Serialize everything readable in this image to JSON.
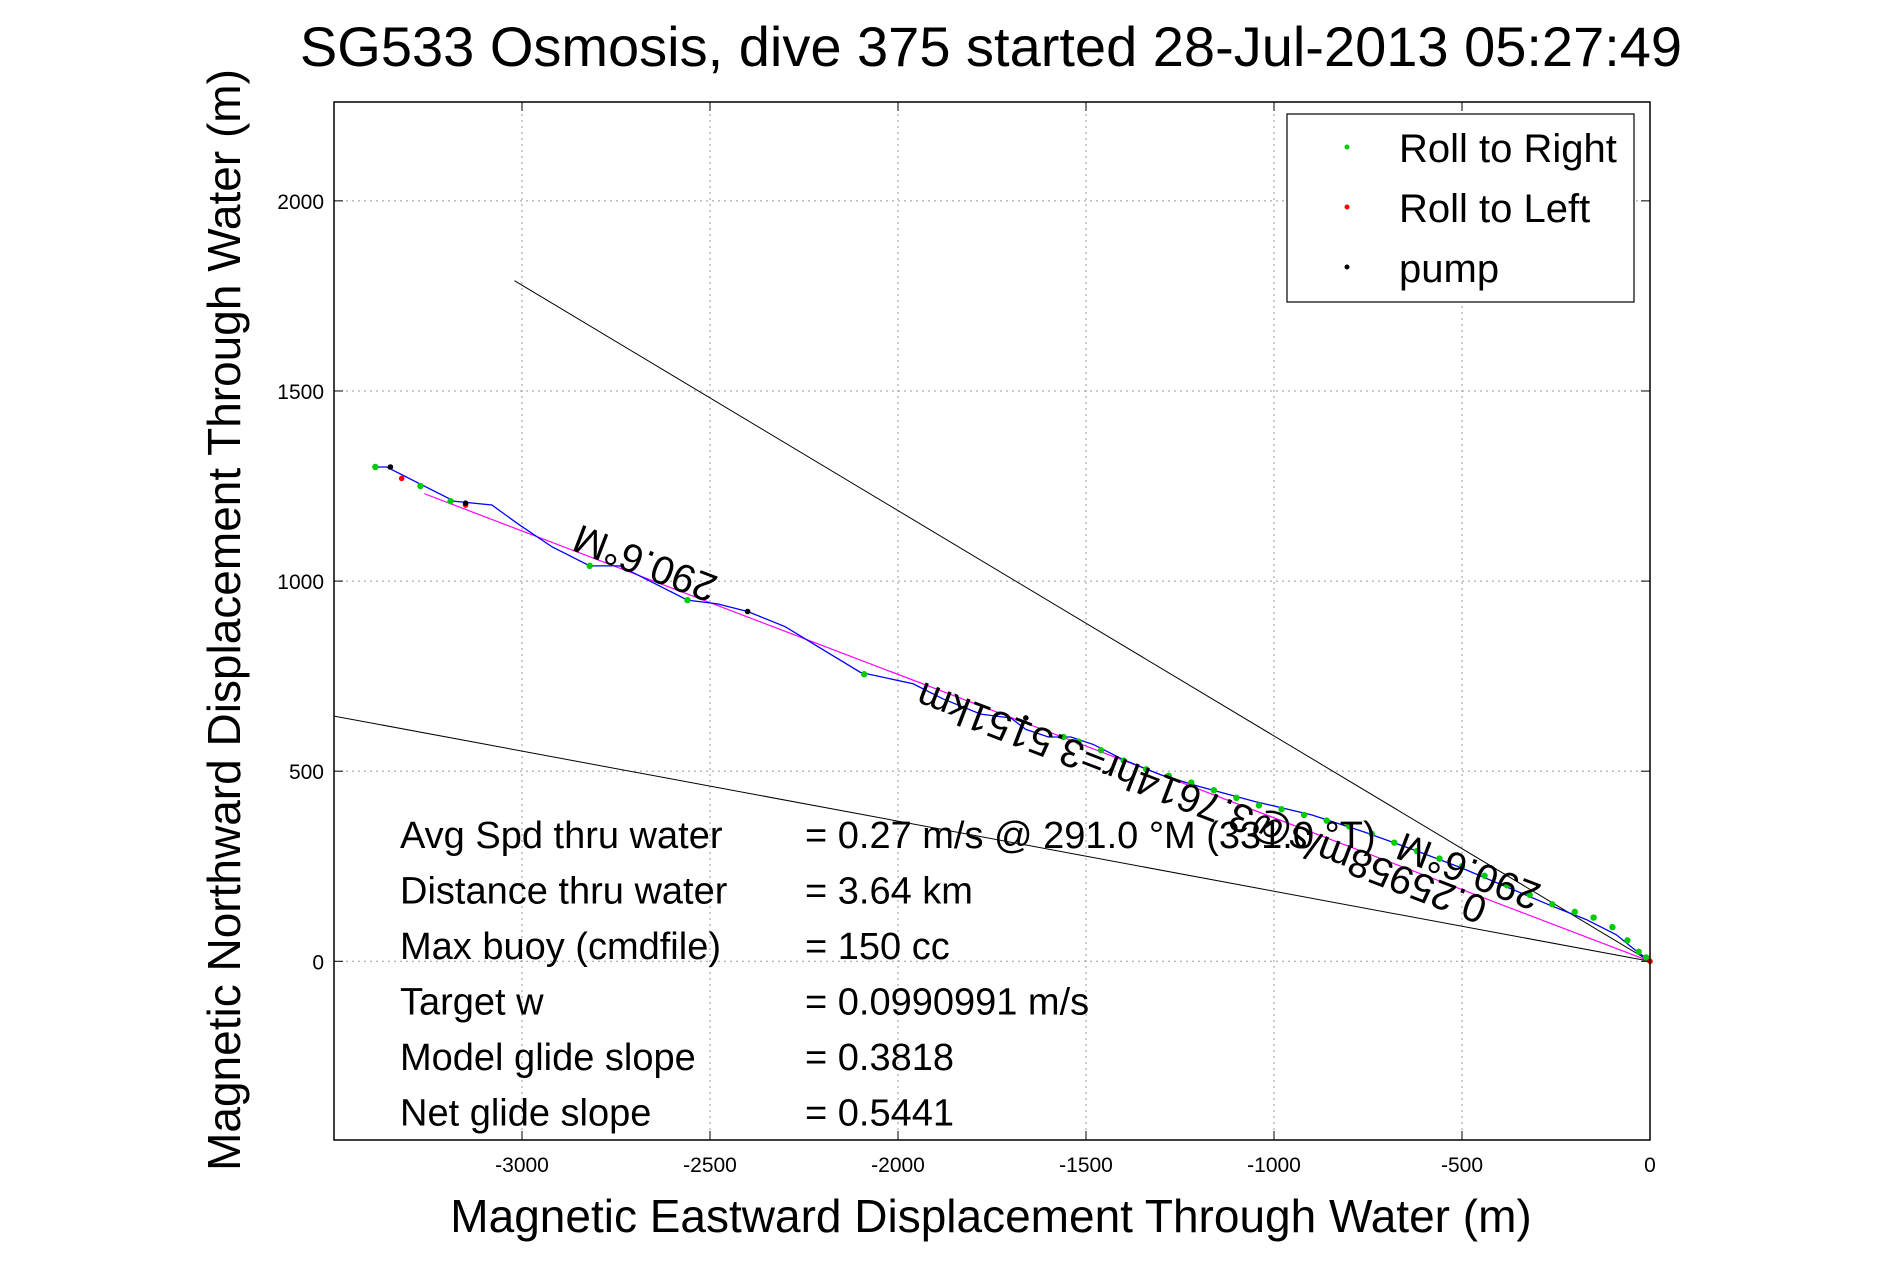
{
  "chart_data": {
    "type": "scatter",
    "title": "SG533 Osmosis, dive 375 started 28-Jul-2013 05:27:49",
    "xlabel": "Magnetic Eastward Displacement Through Water (m)",
    "ylabel": "Magnetic Northward Displacement Through Water (m)",
    "xlim": [
      -3500,
      0
    ],
    "ylim": [
      -470,
      2260
    ],
    "x_ticks": [
      -3000,
      -2500,
      -2000,
      -1500,
      -1000,
      -500,
      0
    ],
    "y_ticks": [
      0,
      500,
      1000,
      1500,
      2000
    ],
    "grid": true,
    "legend_position": "top-right",
    "legend": [
      {
        "label": "Roll to Right",
        "color": "#00cc00"
      },
      {
        "label": "Roll to Left",
        "color": "#ff0000"
      },
      {
        "label": "pump",
        "color": "#000000"
      }
    ],
    "colors": {
      "track": "#0000ff",
      "heading_line": "#ff00ff",
      "roll_right": "#00cc00",
      "roll_left": "#ff0000",
      "pump": "#000000",
      "reference_lines": "#000000",
      "grid": "#999999"
    },
    "track": {
      "x": [
        0,
        -40,
        -90,
        -170,
        -260,
        -380,
        -500,
        -620,
        -760,
        -900,
        -1050,
        -1200,
        -1300,
        -1400,
        -1480,
        -1540,
        -1600,
        -1660,
        -1700,
        -1780,
        -1880,
        -1960,
        -2100,
        -2200,
        -2300,
        -2400,
        -2480,
        -2560,
        -2660,
        -2740,
        -2820,
        -2920,
        -3010,
        -3080,
        -3180,
        -3260,
        -3300,
        -3320,
        -3340,
        -3360,
        -3390
      ],
      "y": [
        0,
        30,
        70,
        110,
        145,
        195,
        245,
        290,
        340,
        385,
        420,
        460,
        490,
        530,
        570,
        590,
        590,
        610,
        640,
        650,
        690,
        730,
        760,
        820,
        880,
        920,
        940,
        950,
        1000,
        1040,
        1040,
        1090,
        1150,
        1200,
        1210,
        1250,
        1270,
        1280,
        1290,
        1300,
        1300
      ]
    },
    "roll_right_points": {
      "x": [
        -10,
        -30,
        -60,
        -100,
        -150,
        -200,
        -260,
        -320,
        -380,
        -440,
        -500,
        -560,
        -620,
        -680,
        -740,
        -800,
        -860,
        -920,
        -980,
        -1040,
        -1100,
        -1160,
        -1220,
        -1280,
        -1340,
        -1400,
        -1460,
        -1520,
        -1560,
        -2090,
        -2560,
        -2820,
        -3190,
        -3270,
        -3390
      ],
      "y": [
        10,
        25,
        55,
        90,
        115,
        130,
        150,
        175,
        200,
        225,
        250,
        270,
        290,
        312,
        335,
        355,
        370,
        385,
        400,
        410,
        430,
        450,
        470,
        488,
        505,
        528,
        555,
        578,
        590,
        755,
        950,
        1040,
        1210,
        1250,
        1300
      ]
    },
    "roll_left_points": {
      "x": [
        0,
        -3150,
        -3320
      ],
      "y": [
        0,
        1200,
        1270
      ]
    },
    "pump_points": {
      "x": [
        -1660,
        -2400,
        -3150,
        -3350
      ],
      "y": [
        640,
        920,
        1205,
        1300
      ]
    },
    "heading_line": {
      "x": [
        0,
        -3260
      ],
      "y": [
        0,
        1230
      ]
    },
    "reference_lines": [
      {
        "x": [
          0,
          -3020
        ],
        "y": [
          0,
          1790
        ]
      },
      {
        "x": [
          0,
          -3500
        ],
        "y": [
          0,
          645
        ]
      }
    ],
    "rotated_labels": [
      {
        "text": "290.6°M",
        "x": -2660,
        "y": 1080,
        "angle": 21
      },
      {
        "text": "0.25958m/s@3.7614hr=3.5151km",
        "x": -1180,
        "y": 450,
        "angle": 21
      },
      {
        "text": "290.6°M",
        "x": -470,
        "y": 270,
        "angle": 21
      }
    ],
    "annotations": [
      {
        "label": "Avg Spd thru water",
        "value": "=  0.27 m/s @ 291.0 °M (331.0 °T)"
      },
      {
        "label": "Distance thru water",
        "value": "=  3.64 km"
      },
      {
        "label": "Max buoy (cmdfile)",
        "value": "= 150 cc"
      },
      {
        "label": "Target w",
        "value": "= 0.0990991 m/s"
      },
      {
        "label": "Model glide slope",
        "value": "= 0.3818"
      },
      {
        "label": "Net glide slope",
        "value": "= 0.5441"
      }
    ]
  }
}
